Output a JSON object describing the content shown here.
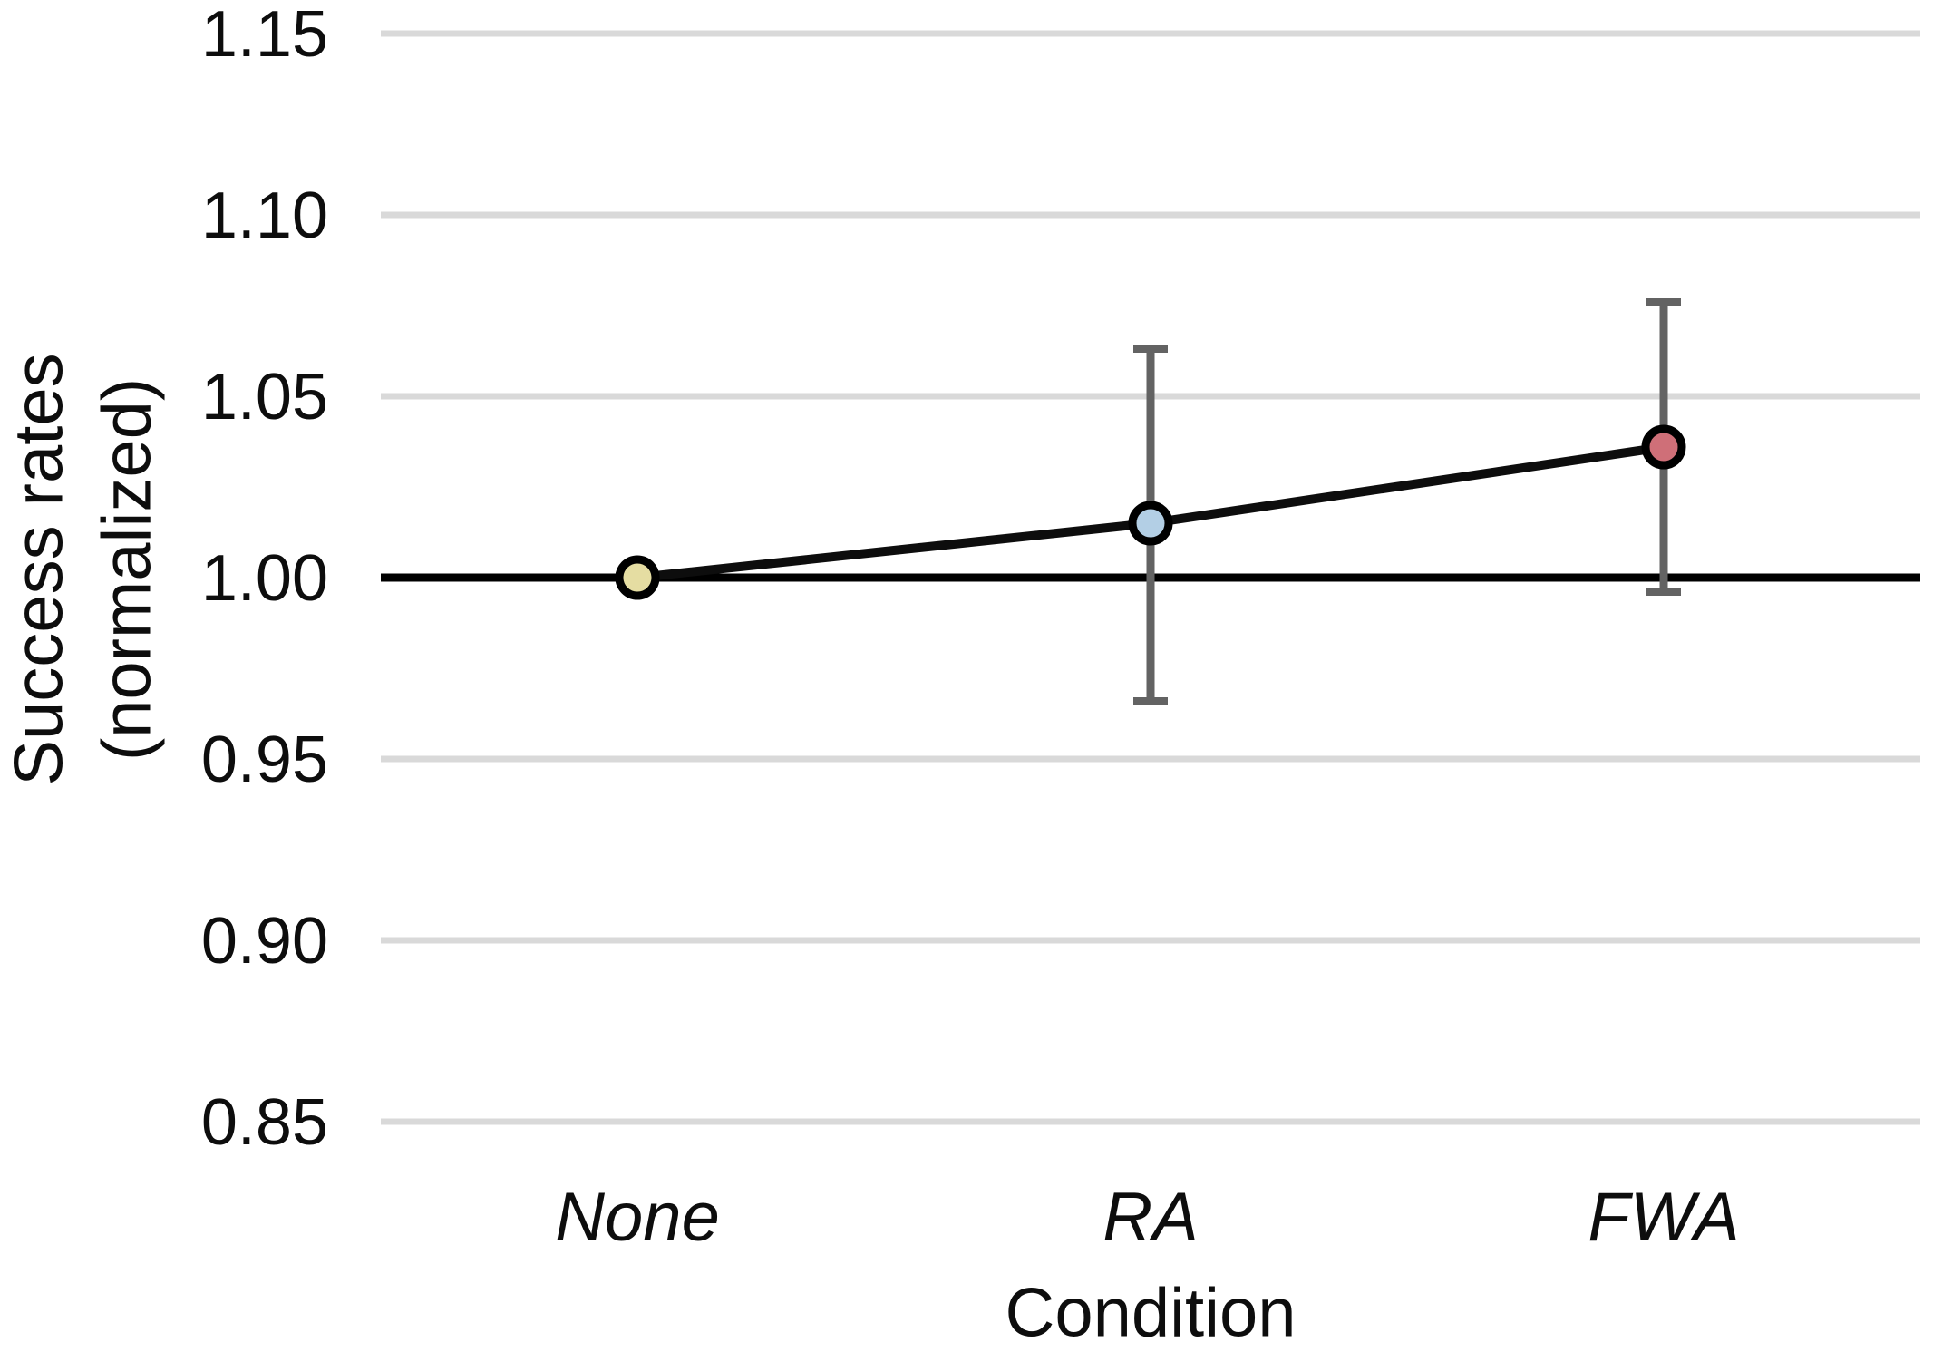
{
  "chart_data": {
    "type": "line",
    "title": "",
    "xlabel": "Condition",
    "ylabel": "Success rates (normalized)",
    "ylabel_lines": [
      "Success rates",
      "(normalized)"
    ],
    "categories": [
      "None",
      "RA",
      "FWA"
    ],
    "series": [
      {
        "name": "Success rates (normalized)",
        "values": [
          1.0,
          1.015,
          1.036
        ],
        "error_high": [
          null,
          1.063,
          1.076
        ],
        "error_low": [
          null,
          0.966,
          0.996
        ],
        "marker_fills": [
          "#e5dda2",
          "#b3cfe5",
          "#cf6f78"
        ],
        "line_color": "#0d0d0d"
      }
    ],
    "yticks": [
      1.15,
      1.1,
      1.05,
      1.0,
      0.95,
      0.9,
      0.85
    ],
    "ytick_labels": [
      "1.15",
      "1.10",
      "1.05",
      "1.00",
      "0.95",
      "0.90",
      "0.85"
    ],
    "ylim": [
      0.85,
      1.15
    ],
    "baseline": 1.0,
    "grid": true,
    "legend_position": "none",
    "colors": {
      "gridline": "#d9d9d9",
      "baseline": "#000000",
      "error_bar": "#636363",
      "marker_stroke": "#000000",
      "text": "#0d0d0d"
    }
  }
}
